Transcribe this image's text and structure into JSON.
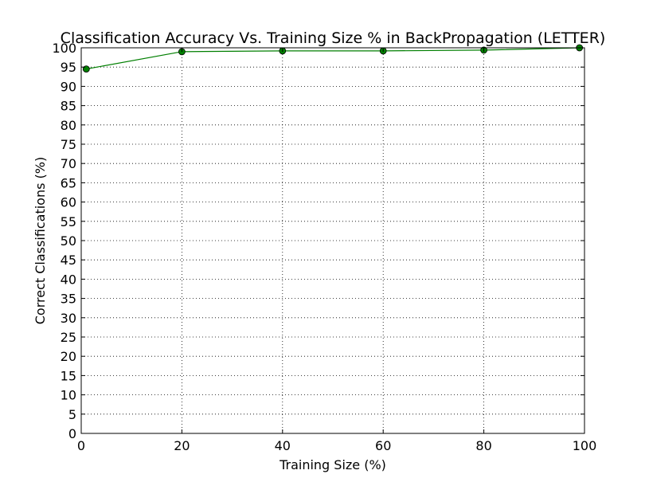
{
  "chart_data": {
    "type": "line",
    "title": "Classification Accuracy Vs. Training Size % in BackPropagation (LETTER)",
    "xlabel": "Training Size (%)",
    "ylabel": "Correct Classifications (%)",
    "xlim": [
      0,
      100
    ],
    "ylim": [
      0,
      100
    ],
    "xticks": [
      0,
      20,
      40,
      60,
      80,
      100
    ],
    "yticks": [
      0,
      5,
      10,
      15,
      20,
      25,
      30,
      35,
      40,
      45,
      50,
      55,
      60,
      65,
      70,
      75,
      80,
      85,
      90,
      95,
      100
    ],
    "grid": true,
    "series": [
      {
        "color": "#007f00",
        "marker": "circle",
        "x": [
          1,
          20,
          40,
          60,
          80,
          99
        ],
        "y": [
          94.5,
          99.0,
          99.2,
          99.2,
          99.4,
          100.0
        ]
      }
    ]
  }
}
